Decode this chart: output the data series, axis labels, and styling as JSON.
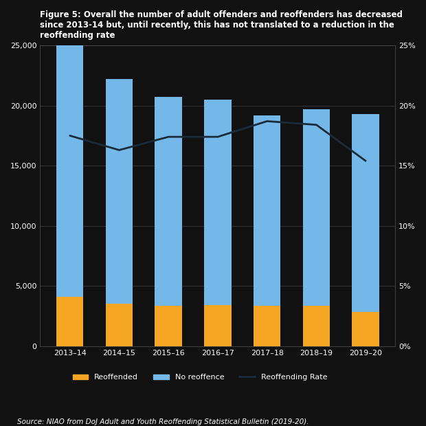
{
  "categories": [
    "2013–14",
    "2014–15",
    "2015–16",
    "2016–17",
    "2017–18",
    "2018–19",
    "2019–20"
  ],
  "reoffended": [
    4100,
    3500,
    3350,
    3400,
    3350,
    3350,
    2850
  ],
  "no_reoffence": [
    20900,
    18700,
    17350,
    17100,
    15850,
    16350,
    16450
  ],
  "reoffending_rate": [
    0.175,
    0.163,
    0.174,
    0.174,
    0.187,
    0.184,
    0.154
  ],
  "bar_color_reoffended": "#F5A623",
  "bar_color_no_reoffence": "#74B8EA",
  "line_color": "#1C2B3A",
  "bg_color": "#111111",
  "text_color": "#FFFFFF",
  "grid_color": "#444444",
  "title_line1": "Figure 5: Overall the number of adult offenders and reoffenders has decreased",
  "title_line2": "since 2013-14 but, until recently, this has not translated to a reduction in the",
  "title_line3": "reoffending rate",
  "ylim_left": [
    0,
    25000
  ],
  "ylim_right": [
    0,
    0.25
  ],
  "yticks_left": [
    0,
    5000,
    10000,
    15000,
    20000,
    25000
  ],
  "ytick_labels_left": [
    "0",
    "5,000",
    "10,000",
    "15,000",
    "20,000",
    "25,000"
  ],
  "yticks_right": [
    0.0,
    0.05,
    0.1,
    0.15,
    0.2,
    0.25
  ],
  "ytick_labels_right": [
    "0%",
    "5%",
    "10%",
    "15%",
    "20%",
    "25%"
  ],
  "legend_labels": [
    "Reoffended",
    "No reoffence",
    "Reoffending Rate"
  ],
  "source_text": "Source: NIAO from DoJ Adult and Youth Reoffending Statistical Bulletin (2019-20).",
  "bar_width": 0.55,
  "title_fontsize": 8.5,
  "tick_fontsize": 8,
  "legend_fontsize": 8,
  "source_fontsize": 7.5
}
